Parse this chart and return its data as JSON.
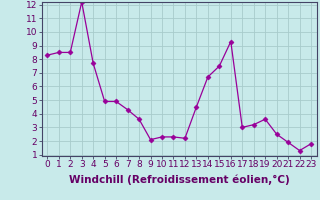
{
  "x": [
    0,
    1,
    2,
    3,
    4,
    5,
    6,
    7,
    8,
    9,
    10,
    11,
    12,
    13,
    14,
    15,
    16,
    17,
    18,
    19,
    20,
    21,
    22,
    23
  ],
  "y": [
    8.3,
    8.5,
    8.5,
    12.2,
    7.7,
    4.9,
    4.9,
    4.3,
    3.6,
    2.1,
    2.3,
    2.3,
    2.2,
    4.5,
    6.7,
    7.5,
    9.3,
    3.0,
    3.2,
    3.6,
    2.5,
    1.9,
    1.3,
    1.8
  ],
  "line_color": "#990099",
  "marker": "D",
  "marker_size": 2.5,
  "bg_color": "#c8eaea",
  "grid_color": "#a8cccc",
  "xlabel": "Windchill (Refroidissement éolien,°C)",
  "ylim_min": 1,
  "ylim_max": 12,
  "xlim_min": -0.5,
  "xlim_max": 23.5,
  "yticks": [
    1,
    2,
    3,
    4,
    5,
    6,
    7,
    8,
    9,
    10,
    11,
    12
  ],
  "xticks": [
    0,
    1,
    2,
    3,
    4,
    5,
    6,
    7,
    8,
    9,
    10,
    11,
    12,
    13,
    14,
    15,
    16,
    17,
    18,
    19,
    20,
    21,
    22,
    23
  ],
  "tick_label_fontsize": 6.5,
  "xlabel_fontsize": 7.5,
  "spine_color": "#444466",
  "text_color": "#660066"
}
